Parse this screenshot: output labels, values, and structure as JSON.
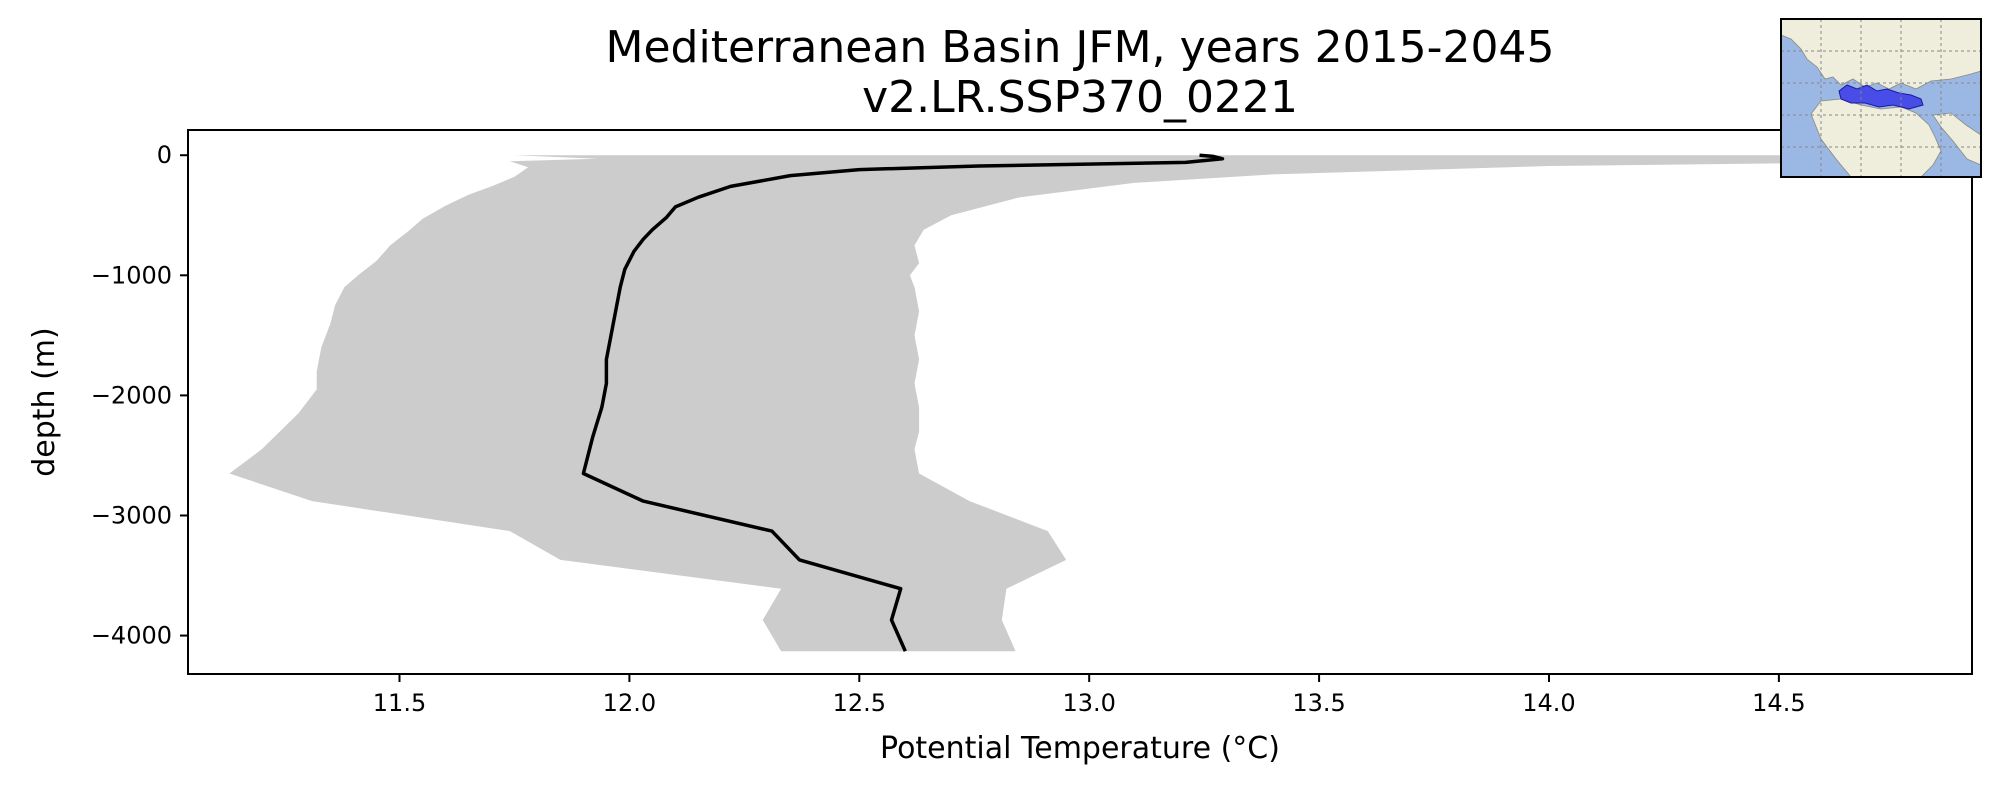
{
  "chart_data": {
    "type": "line",
    "title_lines": [
      "Mediterranean Basin JFM, years 2015-2045",
      "v2.LR.SSP370_0221"
    ],
    "xlabel": "Potential Temperature (°C)",
    "ylabel": "depth (m)",
    "xlim": [
      11.04,
      14.92
    ],
    "ylim": [
      -4320,
      210
    ],
    "x_ticks": [
      11.5,
      12.0,
      12.5,
      13.0,
      13.5,
      14.0,
      14.5
    ],
    "x_tick_labels": [
      "11.5",
      "12.0",
      "12.5",
      "13.0",
      "13.5",
      "14.0",
      "14.5"
    ],
    "y_ticks": [
      0,
      -1000,
      -2000,
      -3000,
      -4000
    ],
    "y_tick_labels": [
      "0",
      "−1000",
      "−2000",
      "−3000",
      "−4000"
    ],
    "grid": false,
    "series": [
      {
        "color": "#000000",
        "points": [
          [
            13.24,
            0
          ],
          [
            13.27,
            -10
          ],
          [
            13.29,
            -30
          ],
          [
            13.21,
            -60
          ],
          [
            12.76,
            -90
          ],
          [
            12.5,
            -120
          ],
          [
            12.35,
            -170
          ],
          [
            12.22,
            -260
          ],
          [
            12.15,
            -350
          ],
          [
            12.1,
            -430
          ],
          [
            12.08,
            -520
          ],
          [
            12.05,
            -620
          ],
          [
            12.03,
            -700
          ],
          [
            12.01,
            -800
          ],
          [
            11.99,
            -950
          ],
          [
            11.98,
            -1100
          ],
          [
            11.97,
            -1300
          ],
          [
            11.96,
            -1500
          ],
          [
            11.95,
            -1700
          ],
          [
            11.95,
            -1900
          ],
          [
            11.94,
            -2100
          ],
          [
            11.92,
            -2350
          ],
          [
            11.9,
            -2650
          ],
          [
            12.03,
            -2880
          ],
          [
            12.31,
            -3130
          ],
          [
            12.37,
            -3370
          ],
          [
            12.59,
            -3610
          ],
          [
            12.57,
            -3870
          ],
          [
            12.6,
            -4130
          ]
        ]
      }
    ],
    "range_band": {
      "color": "#cccccc",
      "upper": [
        [
          14.92,
          -20
        ],
        [
          14.7,
          -60
        ],
        [
          14.0,
          -90
        ],
        [
          13.4,
          -160
        ],
        [
          13.1,
          -230
        ],
        [
          12.85,
          -350
        ],
        [
          12.7,
          -500
        ],
        [
          12.64,
          -620
        ],
        [
          12.62,
          -750
        ],
        [
          12.63,
          -900
        ],
        [
          12.61,
          -1000
        ],
        [
          12.62,
          -1100
        ],
        [
          12.63,
          -1300
        ],
        [
          12.62,
          -1500
        ],
        [
          12.63,
          -1700
        ],
        [
          12.62,
          -1900
        ],
        [
          12.63,
          -2100
        ],
        [
          12.63,
          -2300
        ],
        [
          12.62,
          -2450
        ],
        [
          12.63,
          -2650
        ],
        [
          12.74,
          -2880
        ],
        [
          12.91,
          -3130
        ],
        [
          12.95,
          -3370
        ],
        [
          12.82,
          -3610
        ],
        [
          12.81,
          -3870
        ],
        [
          12.84,
          -4130
        ]
      ],
      "lower": [
        [
          14.92,
          0
        ],
        [
          11.75,
          0
        ],
        [
          11.93,
          -30
        ],
        [
          11.74,
          -50
        ],
        [
          11.78,
          -100
        ],
        [
          11.75,
          -180
        ],
        [
          11.7,
          -260
        ],
        [
          11.65,
          -330
        ],
        [
          11.6,
          -420
        ],
        [
          11.55,
          -530
        ],
        [
          11.52,
          -630
        ],
        [
          11.48,
          -750
        ],
        [
          11.45,
          -880
        ],
        [
          11.41,
          -1000
        ],
        [
          11.38,
          -1100
        ],
        [
          11.36,
          -1250
        ],
        [
          11.35,
          -1400
        ],
        [
          11.33,
          -1600
        ],
        [
          11.32,
          -1800
        ],
        [
          11.32,
          -1950
        ],
        [
          11.28,
          -2150
        ],
        [
          11.2,
          -2450
        ],
        [
          11.13,
          -2650
        ],
        [
          11.31,
          -2880
        ],
        [
          11.74,
          -3130
        ],
        [
          11.85,
          -3370
        ],
        [
          12.33,
          -3610
        ],
        [
          12.29,
          -3870
        ],
        [
          12.33,
          -4130
        ]
      ]
    },
    "inset_map": {
      "ocean_color": "#9bb7e3",
      "land_color": "#efeddc",
      "region_color": "#3b3be8",
      "gridlines": true,
      "position": "top-right"
    }
  }
}
